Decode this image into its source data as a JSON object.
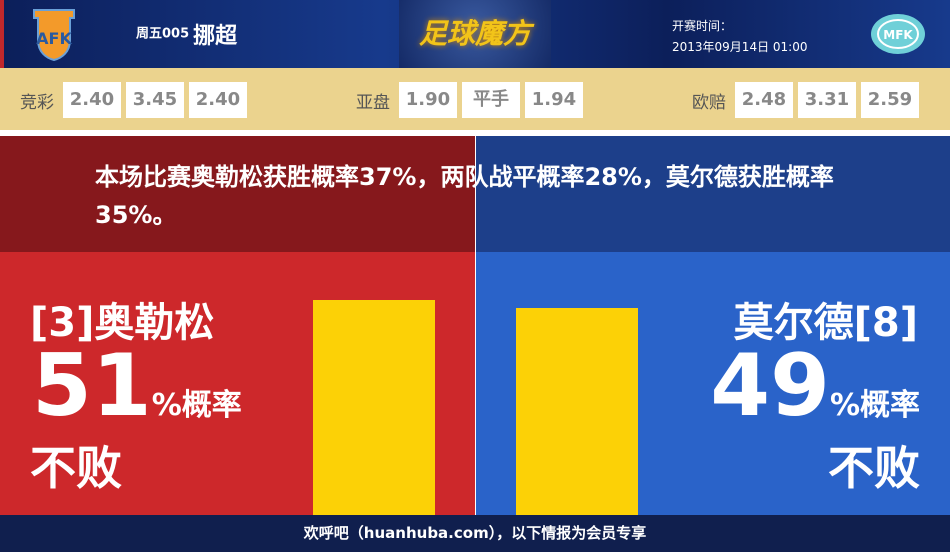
{
  "header": {
    "match_no": "周五005",
    "league": "挪超",
    "brand": "足球魔方",
    "kickoff_label": "开赛时间：",
    "kickoff_time": "2013年09月14日 01:00"
  },
  "odds": [
    {
      "label": "竞彩",
      "values": [
        "2.40",
        "3.45",
        "2.40"
      ]
    },
    {
      "label": "亚盘",
      "values": [
        "1.90",
        "平手",
        "1.94"
      ]
    },
    {
      "label": "欧赔",
      "values": [
        "2.48",
        "3.31",
        "2.59"
      ]
    }
  ],
  "summary": "本场比赛奥勒松获胜概率37%，两队战平概率28%，莫尔德获胜概率35%。",
  "home": {
    "name": "[3]奥勒松",
    "percent": 51,
    "percent_text": "51",
    "suffix": "%概率",
    "outcome": "不败",
    "color": "#cd282b"
  },
  "away": {
    "name": "莫尔德[8]",
    "percent": 49,
    "percent_text": "49",
    "suffix": "%概率",
    "outcome": "不败",
    "color": "#2a63c9"
  },
  "footer": "欢呼吧（huanhuba.com），以下情报为会员专享"
}
